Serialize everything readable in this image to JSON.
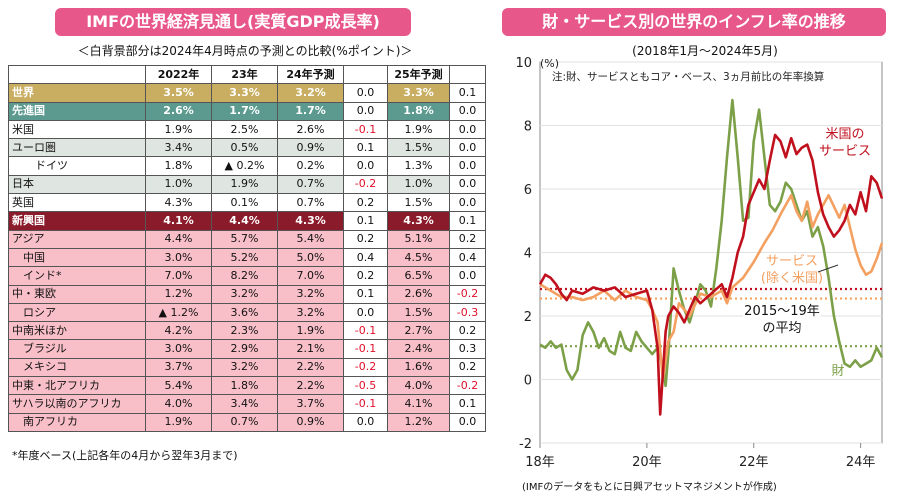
{
  "left": {
    "title": "IMFの世界経済見通し(実質GDP成長率)",
    "subtitle": "＜白背景部分は2024年4月時点の予測との比較(%ポイント)＞",
    "footnote": "*年度ベース(上記各年の4月から翌年3月まで)",
    "columns": [
      "",
      "2022年",
      "23年",
      "24年予測",
      "",
      "25年予測",
      ""
    ],
    "rows": [
      {
        "label": "世界",
        "v22": "3.5%",
        "v23": "3.3%",
        "v24": "3.2%",
        "d24": "0.0",
        "v25": "3.3%",
        "d25": "0.1"
      },
      {
        "label": "先進国",
        "v22": "2.6%",
        "v23": "1.7%",
        "v24": "1.7%",
        "d24": "0.0",
        "v25": "1.8%",
        "d25": "0.0"
      },
      {
        "label": "米国",
        "v22": "1.9%",
        "v23": "2.5%",
        "v24": "2.6%",
        "d24": "-0.1",
        "v25": "1.9%",
        "d25": "0.0"
      },
      {
        "label": "ユーロ圏",
        "v22": "3.4%",
        "v23": "0.5%",
        "v24": "0.9%",
        "d24": "0.1",
        "v25": "1.5%",
        "d25": "0.0"
      },
      {
        "label": "ドイツ",
        "v22": "1.8%",
        "v23": "▲ 0.2%",
        "v24": "0.2%",
        "d24": "0.0",
        "v25": "1.3%",
        "d25": "0.0"
      },
      {
        "label": "日本",
        "v22": "1.0%",
        "v23": "1.9%",
        "v24": "0.7%",
        "d24": "-0.2",
        "v25": "1.0%",
        "d25": "0.0"
      },
      {
        "label": "英国",
        "v22": "4.3%",
        "v23": "0.1%",
        "v24": "0.7%",
        "d24": "0.2",
        "v25": "1.5%",
        "d25": "0.0"
      },
      {
        "label": "新興国",
        "v22": "4.1%",
        "v23": "4.4%",
        "v24": "4.3%",
        "d24": "0.1",
        "v25": "4.3%",
        "d25": "0.1"
      },
      {
        "label": "アジア",
        "v22": "4.4%",
        "v23": "5.7%",
        "v24": "5.4%",
        "d24": "0.2",
        "v25": "5.1%",
        "d25": "0.2"
      },
      {
        "label": "中国",
        "v22": "3.0%",
        "v23": "5.2%",
        "v24": "5.0%",
        "d24": "0.4",
        "v25": "4.5%",
        "d25": "0.4"
      },
      {
        "label": "インド*",
        "v22": "7.0%",
        "v23": "8.2%",
        "v24": "7.0%",
        "d24": "0.2",
        "v25": "6.5%",
        "d25": "0.0"
      },
      {
        "label": "中・東欧",
        "v22": "1.2%",
        "v23": "3.2%",
        "v24": "3.2%",
        "d24": "0.1",
        "v25": "2.6%",
        "d25": "-0.2"
      },
      {
        "label": "ロシア",
        "v22": "▲ 1.2%",
        "v23": "3.6%",
        "v24": "3.2%",
        "d24": "0.0",
        "v25": "1.5%",
        "d25": "-0.3"
      },
      {
        "label": "中南米ほか",
        "v22": "4.2%",
        "v23": "2.3%",
        "v24": "1.9%",
        "d24": "-0.1",
        "v25": "2.7%",
        "d25": "0.2"
      },
      {
        "label": "ブラジル",
        "v22": "3.0%",
        "v23": "2.9%",
        "v24": "2.1%",
        "d24": "-0.1",
        "v25": "2.4%",
        "d25": "0.3"
      },
      {
        "label": "メキシコ",
        "v22": "3.7%",
        "v23": "3.2%",
        "v24": "2.2%",
        "d24": "-0.2",
        "v25": "1.6%",
        "d25": "0.2"
      },
      {
        "label": "中東・北アフリカ",
        "v22": "5.4%",
        "v23": "1.8%",
        "v24": "2.2%",
        "d24": "-0.5",
        "v25": "4.0%",
        "d25": "-0.2"
      },
      {
        "label": "サハラ以南のアフリカ",
        "v22": "4.0%",
        "v23": "3.4%",
        "v24": "3.7%",
        "d24": "-0.1",
        "v25": "4.1%",
        "d25": "0.1"
      },
      {
        "label": "南アフリカ",
        "v22": "1.9%",
        "v23": "0.7%",
        "v24": "0.9%",
        "d24": "0.0",
        "v25": "1.2%",
        "d25": "0.0"
      }
    ]
  },
  "right": {
    "title": "財・サービス別の世界のインフレ率の推移",
    "subtitle": "(2018年1月～2024年5月)",
    "source": "(IMFのデータをもとに日興アセットマネジメントが作成)"
  },
  "colors": {
    "pink": "#e8578a",
    "services": "#c0101e",
    "services_ex_us": "#f4a060",
    "goods": "#7ca048",
    "avg_services": "#c0101e",
    "avg_services_ex_us": "#f4a060",
    "avg_goods": "#7ca048"
  },
  "chart_data": {
    "type": "line",
    "title": "財・サービス別の世界のインフレ率の推移",
    "ylabel": "(%)",
    "note": "注:財、サービスともコア・ベース、3ヵ月前比の年率換算",
    "ylim": [
      -2,
      10
    ],
    "yticks": [
      -2,
      0,
      2,
      4,
      6,
      8,
      10
    ],
    "xlim": [
      2018.0,
      2024.4
    ],
    "xticks": [
      {
        "x": 2018.0,
        "label": "18年"
      },
      {
        "x": 2020.0,
        "label": "20年"
      },
      {
        "x": 2022.0,
        "label": "22年"
      },
      {
        "x": 2024.0,
        "label": "24年"
      }
    ],
    "series": [
      {
        "name": "米国のサービス",
        "label_lines": [
          "米国の",
          "サービス"
        ],
        "x": [
          2018.0,
          2018.1,
          2018.2,
          2018.3,
          2018.4,
          2018.5,
          2018.6,
          2018.8,
          2019.0,
          2019.2,
          2019.4,
          2019.6,
          2019.8,
          2020.0,
          2020.1,
          2020.2,
          2020.25,
          2020.35,
          2020.4,
          2020.5,
          2020.6,
          2020.7,
          2020.8,
          2020.9,
          2021.0,
          2021.2,
          2021.4,
          2021.5,
          2021.6,
          2021.7,
          2021.8,
          2021.9,
          2022.0,
          2022.1,
          2022.2,
          2022.3,
          2022.4,
          2022.5,
          2022.6,
          2022.7,
          2022.8,
          2022.9,
          2023.0,
          2023.1,
          2023.2,
          2023.3,
          2023.4,
          2023.5,
          2023.6,
          2023.7,
          2023.8,
          2023.9,
          2024.0,
          2024.1,
          2024.2,
          2024.3,
          2024.4
        ],
        "values": [
          3.0,
          3.3,
          3.2,
          3.0,
          2.7,
          2.5,
          2.8,
          2.7,
          2.9,
          2.8,
          2.9,
          2.6,
          2.7,
          2.8,
          2.2,
          1.0,
          -1.1,
          1.5,
          2.0,
          2.3,
          2.1,
          1.8,
          2.2,
          2.6,
          2.4,
          2.7,
          3.0,
          2.6,
          3.2,
          4.0,
          4.5,
          5.5,
          5.9,
          6.3,
          6.0,
          6.9,
          7.7,
          7.5,
          7.0,
          7.6,
          7.1,
          7.3,
          7.4,
          6.9,
          5.9,
          5.2,
          4.8,
          4.5,
          4.7,
          5.0,
          5.5,
          5.2,
          5.9,
          5.3,
          6.4,
          6.2,
          5.7
        ]
      },
      {
        "name": "サービス(除く米国)",
        "label_lines": [
          "サービス",
          "(除く米国)"
        ],
        "x": [
          2018.0,
          2018.2,
          2018.4,
          2018.6,
          2018.8,
          2019.0,
          2019.2,
          2019.4,
          2019.6,
          2019.8,
          2020.0,
          2020.1,
          2020.2,
          2020.3,
          2020.4,
          2020.5,
          2020.6,
          2020.8,
          2021.0,
          2021.2,
          2021.4,
          2021.5,
          2021.6,
          2021.8,
          2022.0,
          2022.2,
          2022.35,
          2022.5,
          2022.6,
          2022.7,
          2022.8,
          2022.9,
          2023.0,
          2023.1,
          2023.2,
          2023.3,
          2023.4,
          2023.6,
          2023.7,
          2023.8,
          2023.9,
          2024.0,
          2024.1,
          2024.2,
          2024.3,
          2024.4
        ],
        "values": [
          3.0,
          2.8,
          2.6,
          2.6,
          2.5,
          2.6,
          2.8,
          2.5,
          2.8,
          2.6,
          2.5,
          2.2,
          1.8,
          0.0,
          1.2,
          1.5,
          2.4,
          2.0,
          2.7,
          2.6,
          2.8,
          2.4,
          2.9,
          3.2,
          3.7,
          4.3,
          4.7,
          5.2,
          5.5,
          5.8,
          5.3,
          5.0,
          5.6,
          4.8,
          5.2,
          5.5,
          5.8,
          5.1,
          5.5,
          4.8,
          4.1,
          3.6,
          3.3,
          3.4,
          3.8,
          4.3
        ]
      },
      {
        "name": "財",
        "label_lines": [
          "財"
        ],
        "x": [
          2018.0,
          2018.1,
          2018.2,
          2018.3,
          2018.4,
          2018.5,
          2018.6,
          2018.7,
          2018.8,
          2018.9,
          2019.0,
          2019.1,
          2019.2,
          2019.3,
          2019.4,
          2019.5,
          2019.6,
          2019.7,
          2019.8,
          2019.9,
          2020.0,
          2020.1,
          2020.2,
          2020.3,
          2020.35,
          2020.4,
          2020.5,
          2020.6,
          2020.7,
          2020.8,
          2020.9,
          2021.0,
          2021.1,
          2021.2,
          2021.3,
          2021.4,
          2021.5,
          2021.6,
          2021.7,
          2021.8,
          2021.9,
          2022.0,
          2022.1,
          2022.2,
          2022.3,
          2022.4,
          2022.5,
          2022.6,
          2022.7,
          2022.8,
          2022.9,
          2023.0,
          2023.1,
          2023.2,
          2023.3,
          2023.4,
          2023.5,
          2023.6,
          2023.7,
          2023.8,
          2023.9,
          2024.0,
          2024.1,
          2024.2,
          2024.3,
          2024.4
        ],
        "values": [
          1.1,
          1.0,
          1.2,
          1.0,
          1.1,
          0.3,
          0.0,
          0.3,
          1.4,
          1.8,
          1.5,
          1.0,
          1.3,
          0.9,
          0.8,
          1.5,
          1.0,
          0.9,
          1.5,
          1.2,
          1.0,
          0.8,
          1.0,
          0.4,
          -0.2,
          0.8,
          3.5,
          2.8,
          2.2,
          1.8,
          2.4,
          3.0,
          2.8,
          2.3,
          3.5,
          5.0,
          7.0,
          8.8,
          7.0,
          5.0,
          5.1,
          7.5,
          8.5,
          7.0,
          5.5,
          5.3,
          5.6,
          6.2,
          6.0,
          5.5,
          5.0,
          5.3,
          4.5,
          4.8,
          4.2,
          3.2,
          2.0,
          1.2,
          0.5,
          0.4,
          0.6,
          0.4,
          0.5,
          0.6,
          1.0,
          0.7
        ]
      },
      {
        "name": "米国のサービスの平均",
        "x": [
          2018.0,
          2024.4
        ],
        "values": [
          2.85,
          2.85
        ],
        "dashed": true
      },
      {
        "name": "サービス(除く米国)の平均",
        "x": [
          2018.0,
          2024.4
        ],
        "values": [
          2.55,
          2.55
        ],
        "dashed": true
      },
      {
        "name": "財の平均",
        "x": [
          2018.0,
          2024.4
        ],
        "values": [
          1.05,
          1.05
        ],
        "dashed": true
      }
    ],
    "annotations": [
      {
        "text_lines": [
          "2015～19年",
          "の平均"
        ]
      }
    ]
  }
}
